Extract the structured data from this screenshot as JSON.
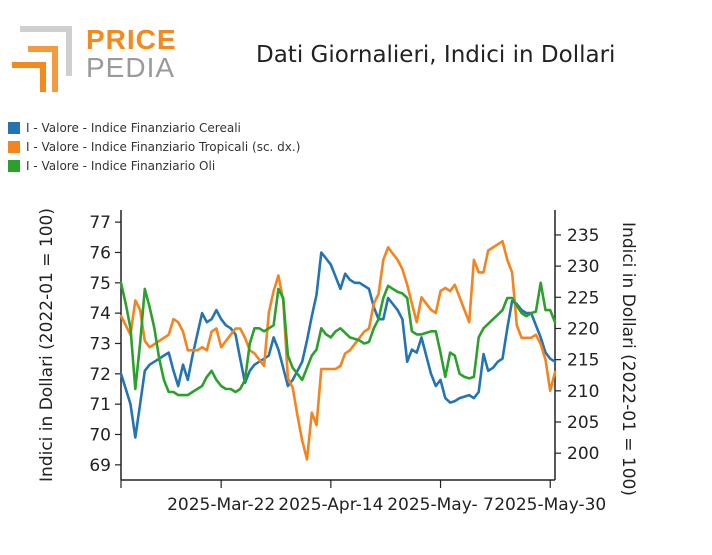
{
  "header": {
    "logo_top": "PRICE",
    "logo_bottom": "PEDIA",
    "title": "Dati Giornalieri, Indici in Dollari"
  },
  "legend": [
    {
      "label": "I - Valore - Indice Finanziario Cereali",
      "color": "#2474b4"
    },
    {
      "label": "I - Valore - Indice Finanziario Tropicali (sc. dx.)",
      "color": "#f5841f"
    },
    {
      "label": "I - Valore - Indice Finanziario Oli",
      "color": "#2ca02c"
    }
  ],
  "chart_data": {
    "type": "line",
    "y_left": {
      "label": "Indici in Dollari (2022-01 = 100)",
      "range": [
        68.5,
        77.4
      ],
      "ticks": [
        69,
        70,
        71,
        72,
        73,
        74,
        75,
        76,
        77
      ]
    },
    "y_right": {
      "label": "Indici in Dollari (2022-01 = 100)",
      "range": [
        195.7,
        239
      ],
      "ticks": [
        200,
        205,
        210,
        215,
        220,
        225,
        230,
        235
      ]
    },
    "x": {
      "ticks": [
        "2025-Mar-22",
        "2025-Apr-14",
        "2025-May- 7",
        "2025-May-30"
      ],
      "tick_index": [
        21,
        44,
        67,
        90
      ]
    },
    "series": [
      {
        "name": "I - Valore - Indice Finanziario Cereali",
        "axis": "left",
        "color": "#2474b4",
        "points": [
          [
            0,
            72
          ],
          [
            1,
            71.5
          ],
          [
            2,
            71
          ],
          [
            3,
            69.9
          ],
          [
            4,
            71
          ],
          [
            5,
            72.1
          ],
          [
            6,
            72.3
          ],
          [
            7,
            72.4
          ],
          [
            8,
            72.5
          ],
          [
            9,
            72.6
          ],
          [
            10,
            72.7
          ],
          [
            11,
            72.1
          ],
          [
            12,
            71.6
          ],
          [
            13,
            72.3
          ],
          [
            14,
            71.8
          ],
          [
            15,
            72.6
          ],
          [
            16,
            73.3
          ],
          [
            17,
            74
          ],
          [
            18,
            73.7
          ],
          [
            19,
            73.8
          ],
          [
            20,
            74.1
          ],
          [
            21,
            73.8
          ],
          [
            22,
            73.6
          ],
          [
            23,
            73.5
          ],
          [
            24,
            73.3
          ],
          [
            25,
            72.5
          ],
          [
            26,
            71.7
          ],
          [
            27,
            72.1
          ],
          [
            28,
            72.3
          ],
          [
            29,
            72.4
          ],
          [
            30,
            72.5
          ],
          [
            31,
            72.6
          ],
          [
            32,
            73.2
          ],
          [
            33,
            72.8
          ],
          [
            34,
            72.2
          ],
          [
            35,
            71.6
          ],
          [
            36,
            71.8
          ],
          [
            37,
            72.1
          ],
          [
            38,
            72.4
          ],
          [
            39,
            73.1
          ],
          [
            40,
            73.9
          ],
          [
            41,
            74.6
          ],
          [
            42,
            76
          ],
          [
            43,
            75.8
          ],
          [
            44,
            75.6
          ],
          [
            45,
            75.2
          ],
          [
            46,
            74.8
          ],
          [
            47,
            75.3
          ],
          [
            48,
            75.1
          ],
          [
            49,
            75
          ],
          [
            50,
            75
          ],
          [
            51,
            74.9
          ],
          [
            52,
            74.8
          ],
          [
            53,
            74.2
          ],
          [
            54,
            73.8
          ],
          [
            55,
            73.8
          ],
          [
            56,
            74.5
          ],
          [
            57,
            74.3
          ],
          [
            58,
            74.1
          ],
          [
            59,
            73.8
          ],
          [
            60,
            72.4
          ],
          [
            61,
            72.8
          ],
          [
            62,
            72.7
          ],
          [
            63,
            73.2
          ],
          [
            64,
            72.6
          ],
          [
            65,
            72
          ],
          [
            66,
            71.6
          ],
          [
            67,
            71.8
          ],
          [
            68,
            71.2
          ],
          [
            69,
            71.05
          ],
          [
            70,
            71.1
          ],
          [
            71,
            71.2
          ],
          [
            72,
            71.25
          ],
          [
            73,
            71.3
          ],
          [
            74,
            71.2
          ],
          [
            75,
            71.4
          ],
          [
            76,
            72.65
          ],
          [
            77,
            72.1
          ],
          [
            78,
            72.2
          ],
          [
            79,
            72.4
          ],
          [
            80,
            72.5
          ],
          [
            81,
            73.5
          ],
          [
            82,
            74.4
          ],
          [
            83,
            74.3
          ],
          [
            84,
            74.1
          ],
          [
            85,
            74
          ],
          [
            86,
            74
          ],
          [
            87,
            73.6
          ],
          [
            88,
            73.2
          ],
          [
            89,
            72.7
          ],
          [
            90,
            72.5
          ],
          [
            91,
            72.4
          ]
        ]
      },
      {
        "name": "I - Valore - Indice Finanziario Tropicali (sc. dx.)",
        "axis": "right",
        "color": "#f5841f",
        "points": [
          [
            0,
            222
          ],
          [
            1,
            220.5
          ],
          [
            2,
            219
          ],
          [
            3,
            224.5
          ],
          [
            4,
            223
          ],
          [
            5,
            218
          ],
          [
            6,
            217
          ],
          [
            7,
            217.5
          ],
          [
            8,
            218
          ],
          [
            9,
            218.5
          ],
          [
            10,
            219
          ],
          [
            11,
            221.5
          ],
          [
            12,
            221
          ],
          [
            13,
            219.5
          ],
          [
            14,
            216.5
          ],
          [
            15,
            216.5
          ],
          [
            16,
            216.5
          ],
          [
            17,
            217
          ],
          [
            18,
            216.5
          ],
          [
            19,
            219.5
          ],
          [
            20,
            220
          ],
          [
            21,
            217
          ],
          [
            22,
            218
          ],
          [
            23,
            219
          ],
          [
            24,
            220
          ],
          [
            25,
            220
          ],
          [
            26,
            218.5
          ],
          [
            27,
            216.5
          ],
          [
            28,
            216
          ],
          [
            29,
            215
          ],
          [
            30,
            214
          ],
          [
            31,
            222.5
          ],
          [
            32,
            226
          ],
          [
            33,
            228.5
          ],
          [
            34,
            224.5
          ],
          [
            35,
            212
          ],
          [
            36,
            210.5
          ],
          [
            37,
            206
          ],
          [
            38,
            202
          ],
          [
            39,
            199
          ],
          [
            40,
            206.5
          ],
          [
            41,
            204.5
          ],
          [
            42,
            213.5
          ],
          [
            43,
            213.5
          ],
          [
            44,
            213.5
          ],
          [
            45,
            213.5
          ],
          [
            46,
            214
          ],
          [
            47,
            216
          ],
          [
            48,
            216.5
          ],
          [
            49,
            217.5
          ],
          [
            50,
            218.5
          ],
          [
            51,
            219.5
          ],
          [
            52,
            220
          ],
          [
            53,
            224
          ],
          [
            54,
            225.5
          ],
          [
            55,
            231
          ],
          [
            56,
            233
          ],
          [
            57,
            232
          ],
          [
            58,
            231
          ],
          [
            59,
            229.5
          ],
          [
            60,
            227
          ],
          [
            61,
            224
          ],
          [
            62,
            221
          ],
          [
            63,
            225
          ],
          [
            64,
            224
          ],
          [
            65,
            223
          ],
          [
            66,
            222.5
          ],
          [
            67,
            226
          ],
          [
            68,
            226.5
          ],
          [
            69,
            226
          ],
          [
            70,
            227
          ],
          [
            71,
            225
          ],
          [
            72,
            223
          ],
          [
            73,
            221
          ],
          [
            74,
            231
          ],
          [
            75,
            229
          ],
          [
            76,
            229
          ],
          [
            77,
            232.5
          ],
          [
            78,
            233
          ],
          [
            79,
            233.5
          ],
          [
            80,
            234
          ],
          [
            81,
            231
          ],
          [
            82,
            229
          ],
          [
            83,
            220.5
          ],
          [
            84,
            218.5
          ],
          [
            85,
            218.5
          ],
          [
            86,
            218.5
          ],
          [
            87,
            219
          ],
          [
            88,
            217.5
          ],
          [
            89,
            215
          ],
          [
            90,
            210
          ],
          [
            91,
            213
          ]
        ]
      },
      {
        "name": "I - Valore - Indice Finanziario Oli",
        "axis": "left",
        "color": "#2ca02c",
        "points": [
          [
            0,
            75
          ],
          [
            1,
            74.3
          ],
          [
            2,
            73.5
          ],
          [
            3,
            71.5
          ],
          [
            4,
            73
          ],
          [
            5,
            74.8
          ],
          [
            6,
            74.2
          ],
          [
            7,
            73.5
          ],
          [
            8,
            72.5
          ],
          [
            9,
            71.8
          ],
          [
            10,
            71.4
          ],
          [
            11,
            71.4
          ],
          [
            12,
            71.3
          ],
          [
            13,
            71.3
          ],
          [
            14,
            71.3
          ],
          [
            15,
            71.4
          ],
          [
            16,
            71.5
          ],
          [
            17,
            71.6
          ],
          [
            18,
            71.9
          ],
          [
            19,
            72.1
          ],
          [
            20,
            71.8
          ],
          [
            21,
            71.6
          ],
          [
            22,
            71.5
          ],
          [
            23,
            71.5
          ],
          [
            24,
            71.4
          ],
          [
            25,
            71.5
          ],
          [
            26,
            71.8
          ],
          [
            27,
            73
          ],
          [
            28,
            73.5
          ],
          [
            29,
            73.5
          ],
          [
            30,
            73.4
          ],
          [
            31,
            73.5
          ],
          [
            32,
            73.6
          ],
          [
            33,
            74.8
          ],
          [
            34,
            74.5
          ],
          [
            35,
            72.6
          ],
          [
            36,
            72.2
          ],
          [
            37,
            72
          ],
          [
            38,
            71.8
          ],
          [
            39,
            72.2
          ],
          [
            40,
            72.6
          ],
          [
            41,
            72.8
          ],
          [
            42,
            73.5
          ],
          [
            43,
            73.3
          ],
          [
            44,
            73.2
          ],
          [
            45,
            73.4
          ],
          [
            46,
            73.5
          ],
          [
            47,
            73.35
          ],
          [
            48,
            73.2
          ],
          [
            49,
            73.15
          ],
          [
            50,
            73.1
          ],
          [
            51,
            73
          ],
          [
            52,
            73.05
          ],
          [
            53,
            73.5
          ],
          [
            54,
            73.8
          ],
          [
            55,
            74.5
          ],
          [
            56,
            74.9
          ],
          [
            57,
            74.8
          ],
          [
            58,
            74.7
          ],
          [
            59,
            74.65
          ],
          [
            60,
            74.5
          ],
          [
            61,
            73.4
          ],
          [
            62,
            73.3
          ],
          [
            63,
            73.3
          ],
          [
            64,
            73.35
          ],
          [
            65,
            73.4
          ],
          [
            66,
            73.4
          ],
          [
            67,
            72.7
          ],
          [
            68,
            71.9
          ],
          [
            69,
            72.7
          ],
          [
            70,
            72.6
          ],
          [
            71,
            72
          ],
          [
            72,
            71.9
          ],
          [
            73,
            71.85
          ],
          [
            74,
            71.9
          ],
          [
            75,
            73.2
          ],
          [
            76,
            73.5
          ],
          [
            77,
            73.65
          ],
          [
            78,
            73.8
          ],
          [
            79,
            73.95
          ],
          [
            80,
            74.1
          ],
          [
            81,
            74.5
          ],
          [
            82,
            74.5
          ],
          [
            83,
            74.25
          ],
          [
            84,
            74
          ],
          [
            85,
            73.9
          ],
          [
            86,
            74
          ],
          [
            87,
            74.05
          ],
          [
            88,
            75
          ],
          [
            89,
            74.1
          ],
          [
            90,
            74.1
          ],
          [
            91,
            73.7
          ]
        ]
      }
    ]
  }
}
